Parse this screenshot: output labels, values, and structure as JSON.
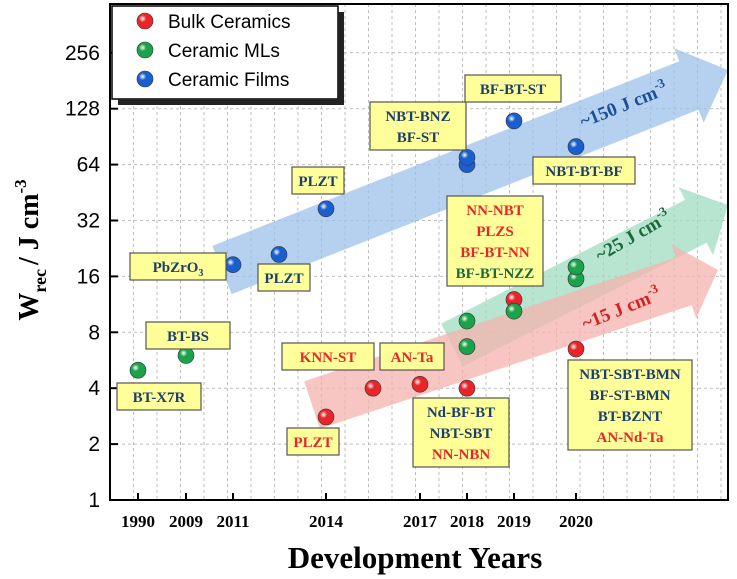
{
  "chart_data": {
    "type": "scatter",
    "xlabel": "Development Years",
    "ylabel_main": "W",
    "ylabel_sub": "rec",
    "ylabel_rest": "/ J cm",
    "ylabel_sup": "-3",
    "y_scale": "log2",
    "ylim": [
      1,
      256
    ],
    "y_ticks": [
      "1",
      "2",
      "4",
      "8",
      "16",
      "32",
      "64",
      "128",
      "256"
    ],
    "x_ticks": [
      "1990",
      "2009",
      "2011",
      "2014",
      "2017",
      "2018",
      "2019",
      "2020"
    ],
    "grid": true,
    "legend_placement": "top-left",
    "legend": [
      {
        "name": "Bulk Ceramics",
        "color": "#e8262a"
      },
      {
        "name": "Ceramic MLs",
        "color": "#1aa34a"
      },
      {
        "name": "Ceramic Films",
        "color": "#1a5fd0"
      }
    ],
    "series": [
      {
        "name": "Bulk Ceramics",
        "color": "#e8262a",
        "points": [
          {
            "year": "2014",
            "y": 2.8
          },
          {
            "year": "2015",
            "y": 4.0
          },
          {
            "year": "2016",
            "y": 4.2
          },
          {
            "year": "2018",
            "y": 4.0
          },
          {
            "year": "2019",
            "y": 12.0
          },
          {
            "year": "2020",
            "y": 6.5
          }
        ]
      },
      {
        "name": "Ceramic MLs",
        "color": "#1aa34a",
        "points": [
          {
            "year": "1990",
            "y": 5.0
          },
          {
            "year": "2009",
            "y": 6.0
          },
          {
            "year": "2018",
            "y": 6.7
          },
          {
            "year": "2018",
            "y": 9.2
          },
          {
            "year": "2019",
            "y": 10.4
          },
          {
            "year": "2020",
            "y": 15.5
          },
          {
            "year": "2020",
            "y": 18.0
          }
        ]
      },
      {
        "name": "Ceramic Films",
        "color": "#1a5fd0",
        "points": [
          {
            "year": "2011",
            "y": 18.5
          },
          {
            "year": "2012",
            "y": 21.0
          },
          {
            "year": "2014",
            "y": 37.0
          },
          {
            "year": "2018",
            "y": 64.0
          },
          {
            "year": "2018",
            "y": 70.0
          },
          {
            "year": "2019",
            "y": 110.0
          },
          {
            "year": "2020",
            "y": 80.0
          }
        ]
      }
    ],
    "trends": [
      {
        "text": "~150 J cm",
        "sup": "-3",
        "color": "#1a4f9a",
        "fill": "#9cc2ea"
      },
      {
        "text": "~25 J cm",
        "sup": "-3",
        "color": "#1b6b3a",
        "fill": "#9fdcc0"
      },
      {
        "text": "~15 J cm",
        "sup": "-3",
        "color": "#d81e1e",
        "fill": "#f6b3ae"
      }
    ],
    "annotations": [
      {
        "lines": [
          {
            "text": "PbZrO",
            "sub": "3"
          }
        ]
      },
      {
        "lines": [
          {
            "text": "PLZT"
          }
        ]
      },
      {
        "lines": [
          {
            "text": "PLZT"
          }
        ]
      },
      {
        "lines": [
          {
            "text": "NBT-BNZ"
          },
          {
            "text": "BF-ST"
          }
        ]
      },
      {
        "lines": [
          {
            "text": "BF-BT-ST"
          }
        ]
      },
      {
        "lines": [
          {
            "text": "NBT-BT-BF"
          }
        ]
      },
      {
        "lines": [
          {
            "text": "BT-BS"
          }
        ]
      },
      {
        "lines": [
          {
            "text": "BT-X7R"
          }
        ]
      },
      {
        "lines": [
          {
            "text": "NN-NBT",
            "color": "#e8262a"
          },
          {
            "text": "PLZS",
            "color": "#e8262a"
          },
          {
            "text": "BF-BT-NN",
            "color": "#e8262a"
          },
          {
            "text": "BF-BT-NZZ",
            "color": "#1b6b3a"
          }
        ]
      },
      {
        "lines": [
          {
            "text": "KNN-ST",
            "color": "#e8262a"
          }
        ]
      },
      {
        "lines": [
          {
            "text": "AN-Ta",
            "color": "#e8262a"
          }
        ]
      },
      {
        "lines": [
          {
            "text": "PLZT",
            "color": "#e8262a"
          }
        ]
      },
      {
        "lines": [
          {
            "text": "Nd-BF-BT"
          },
          {
            "text": "NBT-SBT"
          },
          {
            "text": "NN-NBN",
            "color": "#e8262a"
          }
        ]
      },
      {
        "lines": [
          {
            "text": "NBT-SBT-BMN"
          },
          {
            "text": "BF-ST-BMN"
          },
          {
            "text": "BT-BZNT"
          },
          {
            "text": "AN-Nd-Ta",
            "color": "#e8262a"
          }
        ]
      }
    ],
    "box_fill": "#ffff99",
    "box_text_color": "#1b3f6e"
  }
}
